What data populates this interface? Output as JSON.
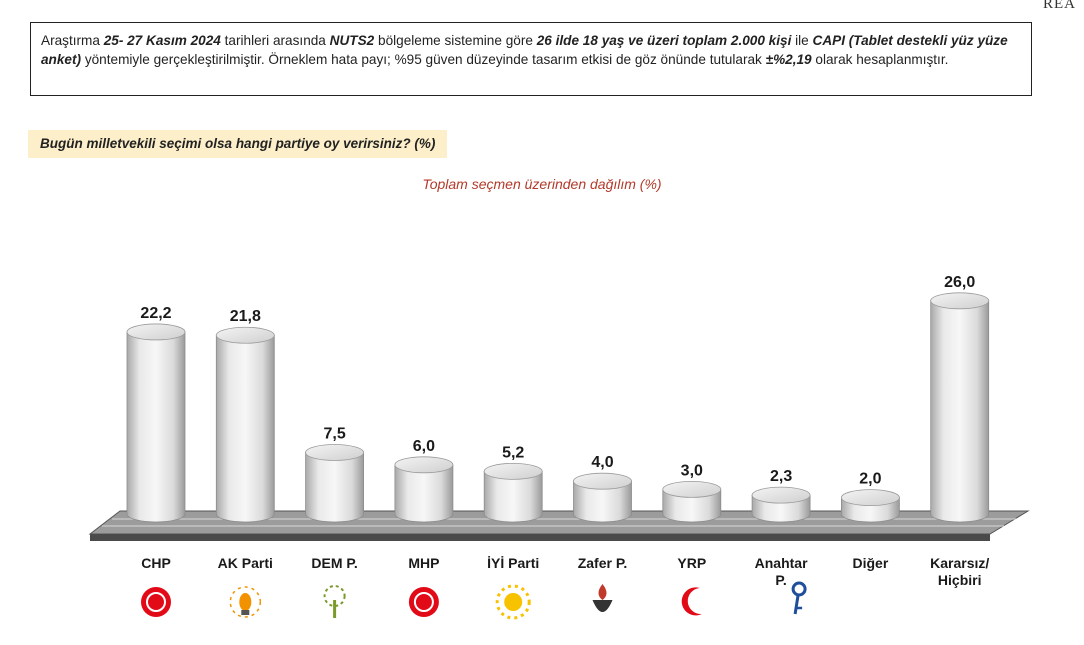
{
  "brand": "REA",
  "info": {
    "p1": "Araştırma ",
    "b1": "25- 27 Kasım 2024",
    "p2": " tarihleri arasında ",
    "b2": "NUTS2",
    "p3": " bölgeleme sistemine göre ",
    "b3": "26 ilde 18 yaş ve üzeri toplam 2.000 kişi",
    "p4": " ile ",
    "b4": "CAPI (Tablet destekli yüz yüze anket)",
    "p5": " yöntemiyle gerçekleştirilmiştir. Örneklem hata payı; %95 güven düzeyinde tasarım etkisi de göz önünde tutularak ",
    "b5": "±%2,19",
    "p6": " olarak hesaplanmıştır."
  },
  "question": "Bugün milletvekili seçimi olsa hangi partiye oy verirsiniz? (%)",
  "chart_data": {
    "type": "bar",
    "subtitle": "Toplam seçmen üzerinden dağılım (%)",
    "categories": [
      "CHP",
      "AK Parti",
      "DEM P.",
      "MHP",
      "İYİ Parti",
      "Zafer P.",
      "YRP",
      "Anahtar P.",
      "Diğer",
      "Kararsız/ Hiçbiri"
    ],
    "category_lines": [
      [
        "CHP"
      ],
      [
        "AK Parti"
      ],
      [
        "DEM P."
      ],
      [
        "MHP"
      ],
      [
        "İYİ Parti"
      ],
      [
        "Zafer P."
      ],
      [
        "YRP"
      ],
      [
        "Anahtar",
        "P."
      ],
      [
        "Diğer"
      ],
      [
        "Kararsız/",
        "Hiçbiri"
      ]
    ],
    "values": [
      22.2,
      21.8,
      7.5,
      6.0,
      5.2,
      4.0,
      3.0,
      2.3,
      2.0,
      26.0
    ],
    "value_labels": [
      "22,2",
      "21,8",
      "7,5",
      "6,0",
      "5,2",
      "4,0",
      "3,0",
      "2,3",
      "2,0",
      "26,0"
    ],
    "logos": [
      "chp-logo",
      "akp-logo",
      "dem-logo",
      "mhp-logo",
      "iyi-logo",
      "zafer-logo",
      "yrp-logo",
      "anahtar-logo",
      "",
      ""
    ],
    "logo_colors": [
      "#e30a17",
      "#f39200",
      "#7a9a2a",
      "#e30a17",
      "#f7c200",
      "#c0392b",
      "#e30a17",
      "#1f4e9c",
      "",
      ""
    ],
    "bar_color": "#e8e8e8",
    "base_color": "#7a7a7a",
    "grid": false
  }
}
